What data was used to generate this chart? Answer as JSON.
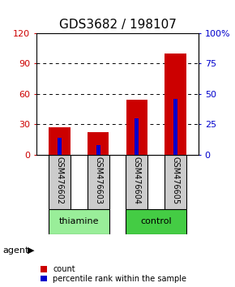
{
  "title": "GDS3682 / 198107",
  "samples": [
    "GSM476602",
    "GSM476603",
    "GSM476604",
    "GSM476605"
  ],
  "count_values": [
    27,
    22,
    54,
    100
  ],
  "percentile_values": [
    14,
    8,
    30,
    46
  ],
  "left_ylim": [
    0,
    120
  ],
  "right_ylim": [
    0,
    100
  ],
  "left_yticks": [
    0,
    30,
    60,
    90,
    120
  ],
  "right_yticks": [
    0,
    25,
    50,
    75,
    100
  ],
  "right_yticklabels": [
    "0",
    "25",
    "50",
    "75",
    "100%"
  ],
  "grid_values": [
    30,
    60,
    90
  ],
  "bar_color_red": "#cc0000",
  "bar_color_blue": "#0000cc",
  "red_bar_width": 0.55,
  "blue_bar_width": 0.1,
  "groups": [
    {
      "label": "thiamine",
      "samples": [
        0,
        1
      ],
      "color": "#99ee99"
    },
    {
      "label": "control",
      "samples": [
        2,
        3
      ],
      "color": "#44cc44"
    }
  ],
  "sample_box_color": "#cccccc",
  "agent_label": "agent",
  "legend_count_label": "count",
  "legend_pct_label": "percentile rank within the sample",
  "title_fontsize": 11,
  "tick_fontsize": 8,
  "sample_fontsize": 7,
  "group_fontsize": 8,
  "background_color": "#ffffff"
}
